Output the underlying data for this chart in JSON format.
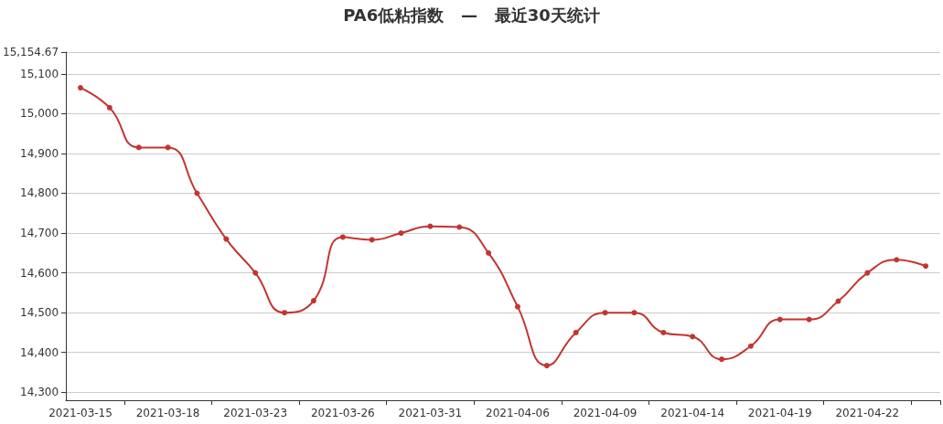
{
  "chart_data": {
    "type": "line",
    "title": "PA6低粘指数   —   最近30天统计",
    "categories": [
      "2021-03-15",
      null,
      null,
      "2021-03-18",
      null,
      null,
      "2021-03-23",
      null,
      null,
      "2021-03-26",
      null,
      null,
      "2021-03-31",
      null,
      null,
      "2021-04-06",
      null,
      null,
      "2021-04-09",
      null,
      null,
      "2021-04-14",
      null,
      null,
      "2021-04-19",
      null,
      null,
      "2021-04-22",
      null,
      null
    ],
    "series": [
      {
        "color": "#c23531",
        "values": [
          15065,
          15015,
          14915,
          14915,
          14800,
          14685,
          14600,
          14500,
          14530,
          14690,
          14683,
          14700,
          14717,
          14715,
          14650,
          14515,
          14367,
          14450,
          14500,
          14500,
          14450,
          14440,
          14383,
          14416,
          14483,
          14483,
          14529,
          14600,
          14633,
          14617
        ]
      }
    ],
    "ylim": [
      14280,
      15154.67
    ],
    "yticks": [
      {
        "value": 14300,
        "label": "14,300"
      },
      {
        "value": 14400,
        "label": "14,400"
      },
      {
        "value": 14500,
        "label": "14,500"
      },
      {
        "value": 14600,
        "label": "14,600"
      },
      {
        "value": 14700,
        "label": "14,700"
      },
      {
        "value": 14800,
        "label": "14,800"
      },
      {
        "value": 14900,
        "label": "14,900"
      },
      {
        "value": 15000,
        "label": "15,000"
      },
      {
        "value": 15100,
        "label": "15,100"
      },
      {
        "value": 15154.67,
        "label": "15,154.67"
      }
    ],
    "grid": "y",
    "marker": "circle",
    "line_style": "solid"
  }
}
